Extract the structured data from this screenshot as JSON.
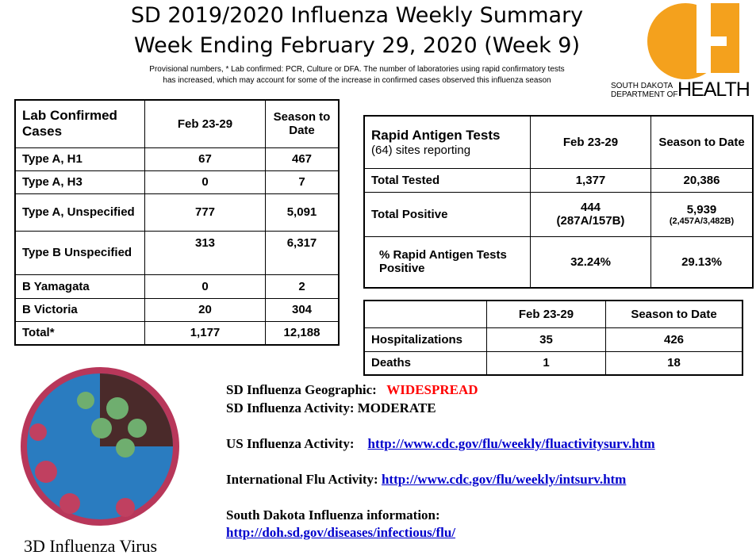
{
  "header": {
    "title_line1": "SD 2019/2020 Influenza Weekly Summary",
    "title_line2": "Week Ending February 29, 2020 (Week 9)",
    "note_line1": "Provisional numbers,  * Lab confirmed: PCR, Culture or DFA. The number of laboratories using rapid confirmatory tests",
    "note_line2": "has increased, which may account for some of the increase in confirmed cases observed this influenza season"
  },
  "logo": {
    "line1": "SOUTH DAKOTA",
    "line2": "DEPARTMENT OF",
    "word": "HEALTH",
    "color": "#F4A11D"
  },
  "lab_table": {
    "headers": [
      "Lab Confirmed Cases",
      "Feb 23-29",
      "Season to Date"
    ],
    "rows": [
      [
        "Type A, H1",
        "67",
        "467"
      ],
      [
        "Type A, H3",
        "0",
        "7"
      ],
      [
        "Type A, Unspecified",
        "777",
        "5,091"
      ],
      [
        "Type B Unspecified",
        "313",
        "6,317"
      ],
      [
        "B Yamagata",
        "0",
        "2"
      ],
      [
        "B Victoria",
        "20",
        "304"
      ],
      [
        "Total*",
        "1,177",
        "12,188"
      ]
    ]
  },
  "rapid_table": {
    "header_title": "Rapid Antigen Tests",
    "header_sub": "(64) sites reporting",
    "headers": [
      "Feb 23-29",
      "Season to Date"
    ],
    "rows": [
      {
        "label": "Total Tested",
        "week": "1,377",
        "season": "20,386"
      },
      {
        "label": "Total Positive",
        "week": "444",
        "week_sub": "(287A/157B)",
        "season": "5,939",
        "season_sub": "(2,457A/3,482B)"
      },
      {
        "label": "% Rapid Antigen Tests Positive",
        "week": "32.24%",
        "season": "29.13%"
      }
    ]
  },
  "hosp_table": {
    "headers": [
      "",
      "Feb 23-29",
      "Season to Date"
    ],
    "rows": [
      [
        "Hospitalizations",
        "35",
        "426"
      ],
      [
        "Deaths",
        "1",
        "18"
      ]
    ]
  },
  "info": {
    "geo_label": "SD Influenza Geographic:",
    "geo_value": "WIDESPREAD",
    "geo_color": "#FF0000",
    "activity": "SD Influenza Activity: MODERATE",
    "us_label": "US Influenza Activity:",
    "us_link": "http://www.cdc.gov/flu/weekly/fluactivitysurv.htm",
    "intl_label": "International Flu Activity:",
    "intl_link": "http://www.cdc.gov/flu/weekly/intsurv.htm",
    "sd_label": "South Dakota Influenza information:",
    "sd_link": "http://doh.sd.gov/diseases/infectious/flu/"
  },
  "virus_caption": "3D Influenza Virus"
}
